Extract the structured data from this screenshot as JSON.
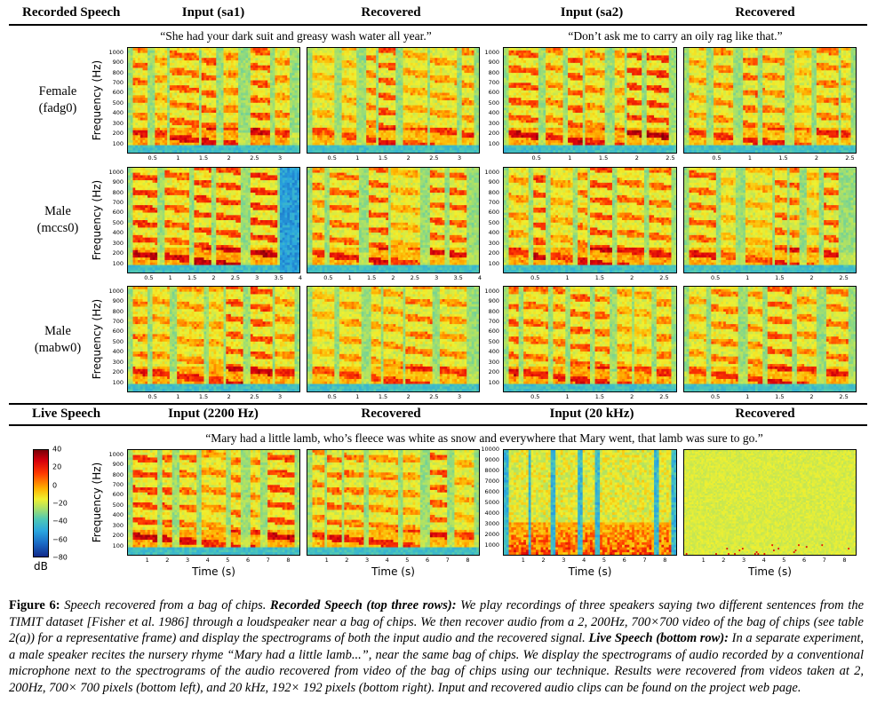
{
  "headers_top": {
    "recorded_speech": "Recorded Speech",
    "input_sa1": "Input (sa1)",
    "recovered_1": "Recovered",
    "input_sa2": "Input (sa2)",
    "recovered_2": "Recovered"
  },
  "headers_bottom": {
    "live_speech": "Live Speech",
    "input_2200": "Input (2200 Hz)",
    "recovered_1": "Recovered",
    "input_20k": "Input (20 kHz)",
    "recovered_2": "Recovered"
  },
  "quotes": {
    "sa1": "“She had your dark suit and greasy wash water all year.”",
    "sa2": "“Don’t ask me to carry an oily rag like that.”",
    "live": "“Mary had a little lamb, who’s fleece was white as snow and everywhere that Mary went, that lamb was sure to go.”"
  },
  "row_labels": [
    {
      "line1": "Female",
      "line2": "(fadg0)"
    },
    {
      "line1": "Male",
      "line2": "(mccs0)"
    },
    {
      "line1": "Male",
      "line2": "(mabw0)"
    }
  ],
  "axis_labels": {
    "frequency": "Frequency (Hz)",
    "time": "Time (s)"
  },
  "colorbar": {
    "label": "dB",
    "ticks": [
      "40",
      "20",
      "0",
      "−20",
      "−40",
      "−60",
      "−80"
    ]
  },
  "chart_data": [
    {
      "type": "heatmap",
      "name_hint": "fadg0 sa1 input",
      "x_ticks": [
        "0.5",
        "1",
        "1.5",
        "2",
        "2.5",
        "3"
      ],
      "y_ticks": [
        "1000",
        "900",
        "800",
        "700",
        "600",
        "500",
        "400",
        "300",
        "200",
        "100"
      ],
      "xlim": [
        0,
        3.4
      ],
      "ylim": [
        0,
        1050
      ],
      "ylabel": "Frequency (Hz)"
    },
    {
      "type": "heatmap",
      "name_hint": "fadg0 sa1 recovered",
      "x_ticks": [
        "0.5",
        "1",
        "1.5",
        "2",
        "2.5",
        "3"
      ],
      "xlim": [
        0,
        3.4
      ],
      "ylim": [
        0,
        1050
      ]
    },
    {
      "type": "heatmap",
      "name_hint": "fadg0 sa2 input",
      "x_ticks": [
        "0.5",
        "1",
        "1.5",
        "2",
        "2.5"
      ],
      "y_ticks": [
        "1000",
        "900",
        "800",
        "700",
        "600",
        "500",
        "400",
        "300",
        "200",
        "100"
      ],
      "xlim": [
        0,
        2.6
      ],
      "ylim": [
        0,
        1050
      ]
    },
    {
      "type": "heatmap",
      "name_hint": "fadg0 sa2 recovered",
      "x_ticks": [
        "0.5",
        "1",
        "1.5",
        "2",
        "2.5"
      ],
      "xlim": [
        0,
        2.6
      ],
      "ylim": [
        0,
        1050
      ]
    },
    {
      "type": "heatmap",
      "name_hint": "mccs0 sa1 input",
      "x_ticks": [
        "0.5",
        "1",
        "1.5",
        "2",
        "2.5",
        "3",
        "3.5",
        "4"
      ],
      "y_ticks": [
        "1000",
        "900",
        "800",
        "700",
        "600",
        "500",
        "400",
        "300",
        "200",
        "100"
      ],
      "xlim": [
        0,
        4.0
      ],
      "ylim": [
        0,
        1050
      ],
      "ylabel": "Frequency (Hz)"
    },
    {
      "type": "heatmap",
      "name_hint": "mccs0 sa1 recovered",
      "x_ticks": [
        "0.5",
        "1",
        "1.5",
        "2",
        "2.5",
        "3",
        "3.5",
        "4"
      ],
      "xlim": [
        0,
        4.0
      ],
      "ylim": [
        0,
        1050
      ]
    },
    {
      "type": "heatmap",
      "name_hint": "mccs0 sa2 input",
      "x_ticks": [
        "0.5",
        "1",
        "1.5",
        "2",
        "2.5"
      ],
      "y_ticks": [
        "1000",
        "900",
        "800",
        "700",
        "600",
        "500",
        "400",
        "300",
        "200",
        "100"
      ],
      "xlim": [
        0,
        2.7
      ],
      "ylim": [
        0,
        1050
      ]
    },
    {
      "type": "heatmap",
      "name_hint": "mccs0 sa2 recovered",
      "x_ticks": [
        "0.5",
        "1",
        "1.5",
        "2",
        "2.5"
      ],
      "xlim": [
        0,
        2.7
      ],
      "ylim": [
        0,
        1050
      ]
    },
    {
      "type": "heatmap",
      "name_hint": "mabw0 sa1 input",
      "x_ticks": [
        "0.5",
        "1",
        "1.5",
        "2",
        "2.5",
        "3"
      ],
      "y_ticks": [
        "1000",
        "900",
        "800",
        "700",
        "600",
        "500",
        "400",
        "300",
        "200",
        "100"
      ],
      "xlim": [
        0,
        3.4
      ],
      "ylim": [
        0,
        1050
      ],
      "ylabel": "Frequency (Hz)"
    },
    {
      "type": "heatmap",
      "name_hint": "mabw0 sa1 recovered",
      "x_ticks": [
        "0.5",
        "1",
        "1.5",
        "2",
        "2.5",
        "3"
      ],
      "xlim": [
        0,
        3.4
      ],
      "ylim": [
        0,
        1050
      ]
    },
    {
      "type": "heatmap",
      "name_hint": "mabw0 sa2 input",
      "x_ticks": [
        "0.5",
        "1",
        "1.5",
        "2",
        "2.5"
      ],
      "y_ticks": [
        "1000",
        "900",
        "800",
        "700",
        "600",
        "500",
        "400",
        "300",
        "200",
        "100"
      ],
      "xlim": [
        0,
        2.7
      ],
      "ylim": [
        0,
        1050
      ]
    },
    {
      "type": "heatmap",
      "name_hint": "mabw0 sa2 recovered",
      "x_ticks": [
        "0.5",
        "1",
        "1.5",
        "2",
        "2.5"
      ],
      "xlim": [
        0,
        2.7
      ],
      "ylim": [
        0,
        1050
      ]
    },
    {
      "type": "heatmap",
      "name_hint": "live input 2200 Hz",
      "x_ticks": [
        "1",
        "2",
        "3",
        "4",
        "5",
        "6",
        "7",
        "8"
      ],
      "y_ticks": [
        "1000",
        "900",
        "800",
        "700",
        "600",
        "500",
        "400",
        "300",
        "200",
        "100"
      ],
      "xlim": [
        0,
        8.6
      ],
      "ylim": [
        0,
        1050
      ],
      "xlabel": "Time (s)",
      "ylabel": "Frequency (Hz)"
    },
    {
      "type": "heatmap",
      "name_hint": "live recovered 2200 Hz",
      "x_ticks": [
        "1",
        "2",
        "3",
        "4",
        "5",
        "6",
        "7",
        "8"
      ],
      "xlim": [
        0,
        8.6
      ],
      "ylim": [
        0,
        1050
      ],
      "xlabel": "Time (s)"
    },
    {
      "type": "heatmap",
      "name_hint": "live input 20 kHz",
      "x_ticks": [
        "1",
        "2",
        "3",
        "4",
        "5",
        "6",
        "7",
        "8"
      ],
      "y_ticks": [
        "10000",
        "9000",
        "8000",
        "7000",
        "6000",
        "5000",
        "4000",
        "3000",
        "2000",
        "1000"
      ],
      "xlim": [
        0,
        8.6
      ],
      "ylim": [
        0,
        10000
      ],
      "xlabel": "Time (s)"
    },
    {
      "type": "heatmap",
      "name_hint": "live recovered 20 kHz",
      "x_ticks": [
        "1",
        "2",
        "3",
        "4",
        "5",
        "6",
        "7",
        "8"
      ],
      "xlim": [
        0,
        8.6
      ],
      "ylim": [
        0,
        10000
      ],
      "xlabel": "Time (s)"
    }
  ],
  "caption": {
    "fig": "Figure 6:",
    "p1": " Speech recovered from a bag of chips. ",
    "b1": "Recorded Speech (top three rows):",
    "p2": " We play recordings of three speakers saying two different sentences from the TIMIT dataset [Fisher et al. 1986] through a loudspeaker near a bag of chips. We then recover audio from a 2, 200Hz, 700×700 video of the bag of chips (see table 2(a)) for a representative frame) and display the spectrograms of both the input audio and the recovered signal. ",
    "b2": "Live Speech (bottom row):",
    "p3": " In a separate experiment, a male speaker recites the nursery rhyme “Mary had a little lamb...”, near the same bag of chips. We display the spectrograms of audio recorded by a conventional microphone next to the spectrograms of the audio recovered from video of the bag of chips using our technique. Results were recovered from videos taken at 2, 200Hz, 700× 700 pixels (bottom left), and 20 kHz, 192× 192 pixels (bottom right). Input and recovered audio clips can be found on the project web page."
  }
}
